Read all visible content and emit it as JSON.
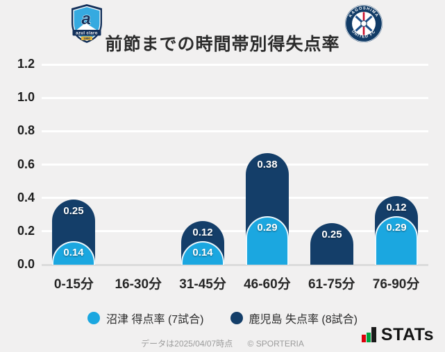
{
  "header": {
    "title": "前節までの時間帯別得失点率"
  },
  "logos": {
    "left": {
      "name": "azul-claro-numazu",
      "glyph": "a",
      "banner_text": "azul claro",
      "year": "1990"
    },
    "right": {
      "name": "kagoshima-united-fc",
      "top_text": "KAGOSHIMA",
      "bottom_text": "UNITED FC"
    }
  },
  "chart_data": {
    "type": "bar",
    "stacked": true,
    "bar_style": "rounded-top",
    "title": "前節までの時間帯別得失点率",
    "categories": [
      "0-15分",
      "16-30分",
      "31-45分",
      "46-60分",
      "61-75分",
      "76-90分"
    ],
    "series": [
      {
        "name": "沼津 得点率 (7試合)",
        "color": "#1BA7E0",
        "values": [
          0.14,
          0,
          0.14,
          0.29,
          0,
          0.29
        ]
      },
      {
        "name": "鹿児島 失点率 (8試合)",
        "color": "#143E69",
        "values": [
          0.25,
          0,
          0.12,
          0.38,
          0.25,
          0.12
        ]
      }
    ],
    "yticks": [
      0.0,
      0.2,
      0.4,
      0.6,
      0.8,
      1.0,
      1.2
    ],
    "ylim": [
      0,
      1.2
    ],
    "xlabel": "",
    "ylabel": "",
    "grid": true,
    "legend_position": "bottom"
  },
  "colors": {
    "background": "#F1F0F0",
    "numazu_blue": "#1BA7E0",
    "kagoshima_navy": "#143E69",
    "gridline": "#FFFFFF",
    "baseline": "#DBDBDB"
  },
  "footer": {
    "note": "データは2025/04/07時点",
    "copyright": "© SPORTERIA",
    "brand_text": "STATs"
  }
}
